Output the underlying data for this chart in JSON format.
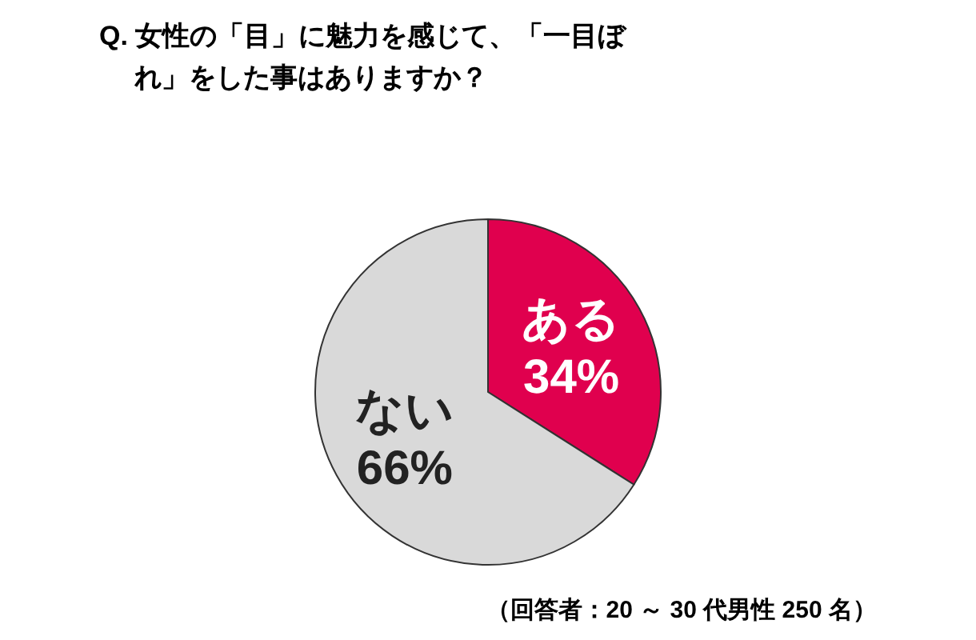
{
  "chart_data": {
    "type": "pie",
    "title": "Q. 女性の「目」に魅力を感じて、「一目ぼれ」をした事はありますか？",
    "categories": [
      "ある",
      "ない"
    ],
    "values": [
      34,
      66
    ],
    "colors": [
      "#e0004e",
      "#d9d9d9"
    ],
    "value_labels": [
      "34%",
      "66%"
    ],
    "annotations": [
      "（回答者：20 ～ 30 代男性 250 名）"
    ]
  }
}
